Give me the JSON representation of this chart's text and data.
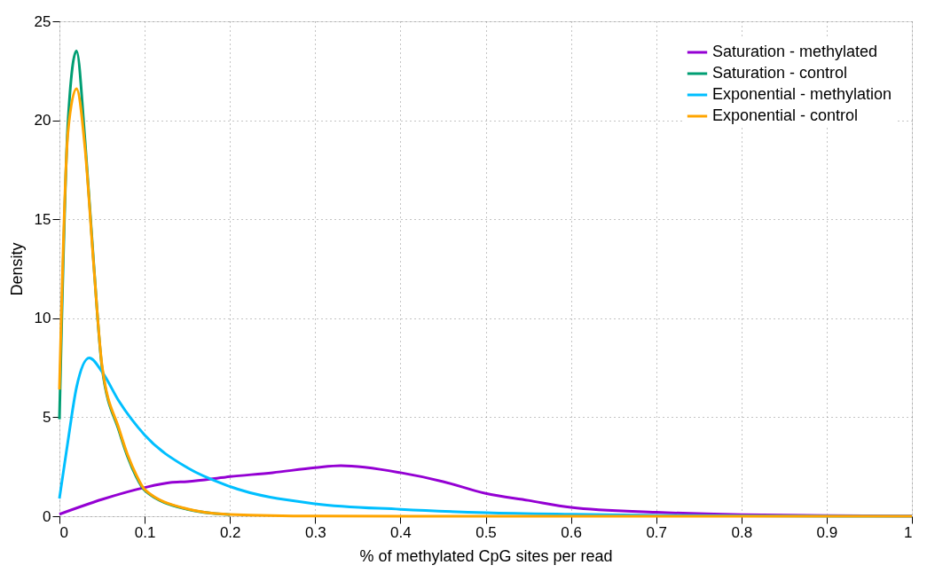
{
  "chart_data": {
    "type": "line",
    "xlabel": "% of methylated CpG sites per read",
    "ylabel": "Density",
    "xlim": [
      0,
      1
    ],
    "ylim": [
      0,
      25
    ],
    "xticks": [
      0,
      0.1,
      0.2,
      0.3,
      0.4,
      0.5,
      0.6,
      0.7,
      0.8,
      0.9,
      1
    ],
    "yticks": [
      0,
      5,
      10,
      15,
      20,
      25
    ],
    "grid": true,
    "legend": "top right",
    "line_style": "solid",
    "marker": "none",
    "series": [
      {
        "name": "Saturation - methylated",
        "color": "#9400d3",
        "x": [
          0,
          0.05,
          0.1,
          0.13,
          0.15,
          0.2,
          0.25,
          0.3,
          0.33,
          0.4,
          0.45,
          0.5,
          0.55,
          0.6,
          0.7,
          0.8,
          0.9,
          1
        ],
        "values": [
          0.1,
          0.85,
          1.45,
          1.7,
          1.75,
          2.0,
          2.2,
          2.45,
          2.55,
          2.2,
          1.75,
          1.15,
          0.8,
          0.45,
          0.2,
          0.08,
          0.03,
          0.01
        ]
      },
      {
        "name": "Saturation - control",
        "color": "#009e73",
        "x": [
          0,
          0.01,
          0.02,
          0.03,
          0.04,
          0.05,
          0.07,
          0.08,
          0.09,
          0.1,
          0.15,
          0.2
        ],
        "values": [
          4.9,
          19.9,
          23.5,
          19.0,
          12.9,
          7.5,
          4.3,
          3.0,
          2.0,
          1.3,
          0.35,
          0.08
        ]
      },
      {
        "name": "Exponential - methylation",
        "color": "#00bfff",
        "x": [
          0,
          0.01,
          0.02,
          0.035,
          0.05,
          0.07,
          0.1,
          0.15,
          0.2,
          0.3,
          0.4,
          0.5,
          0.6,
          0.7,
          0.8,
          1
        ],
        "values": [
          0.9,
          3.8,
          6.5,
          8.0,
          7.3,
          5.8,
          4.1,
          2.45,
          1.5,
          0.63,
          0.35,
          0.18,
          0.1,
          0.05,
          0.02,
          0
        ]
      },
      {
        "name": "Exponential - control",
        "color": "#ffa500",
        "x": [
          0,
          0.01,
          0.02,
          0.03,
          0.04,
          0.05,
          0.07,
          0.08,
          0.09,
          0.1,
          0.15,
          0.2,
          0.3,
          0.5,
          1
        ],
        "values": [
          6.4,
          19.4,
          21.6,
          18.6,
          12.8,
          7.6,
          4.4,
          3.1,
          2.1,
          1.35,
          0.37,
          0.09,
          0.01,
          0,
          0
        ]
      }
    ]
  }
}
